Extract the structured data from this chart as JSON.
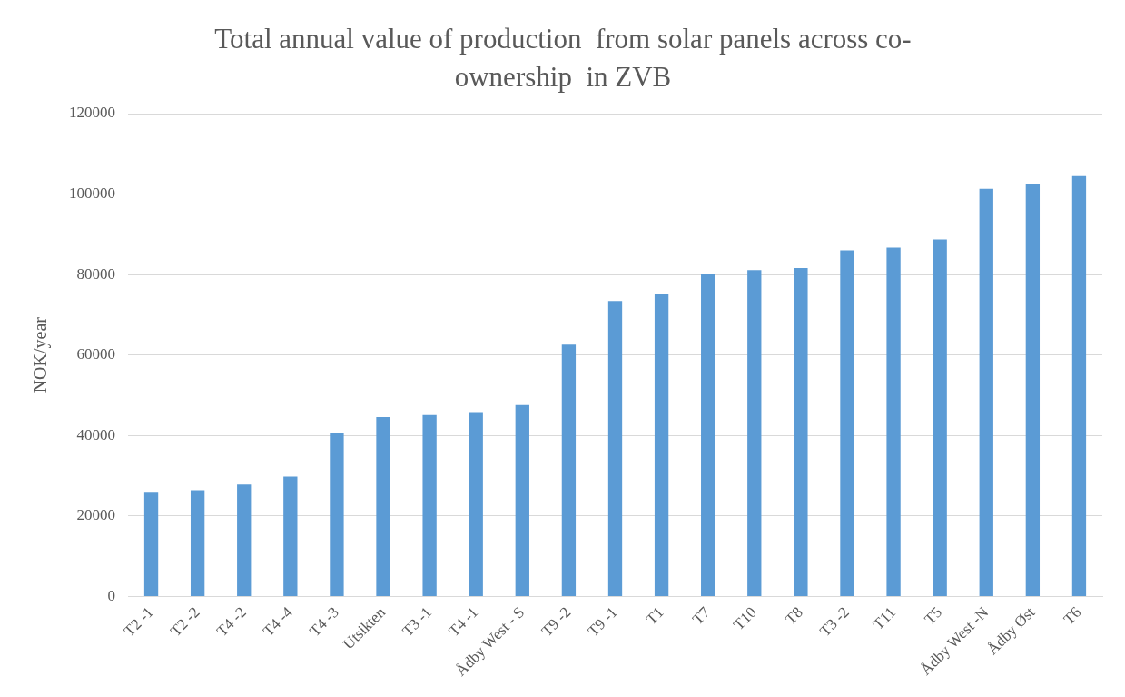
{
  "chart_data": {
    "type": "bar",
    "title": "Total annual value of production  from solar panels across co-ownership  in ZVB",
    "ylabel": "NOK/year",
    "categories": [
      "T2 -1",
      "T2 -2",
      "T4 -2",
      "T4 -4",
      "T4 -3",
      "Utsikten",
      "T3 -1",
      "T4 -1",
      "Ådby West - S",
      "T9 -2",
      "T9 -1",
      "T1",
      "T7",
      "T10",
      "T8",
      "T3 -2",
      "T11",
      "T5",
      "Ådby West -N",
      "Ådby Øst",
      "T6"
    ],
    "values": [
      26000,
      26400,
      27800,
      29800,
      40700,
      44600,
      45100,
      45800,
      47600,
      62600,
      73400,
      75200,
      80100,
      81100,
      81600,
      86000,
      86700,
      88700,
      101300,
      102500,
      104500
    ],
    "color": "#5b9bd5",
    "ylim": [
      0,
      120000
    ],
    "yticks": [
      0,
      20000,
      40000,
      60000,
      80000,
      100000,
      120000
    ],
    "grid": "y",
    "legend": false
  }
}
